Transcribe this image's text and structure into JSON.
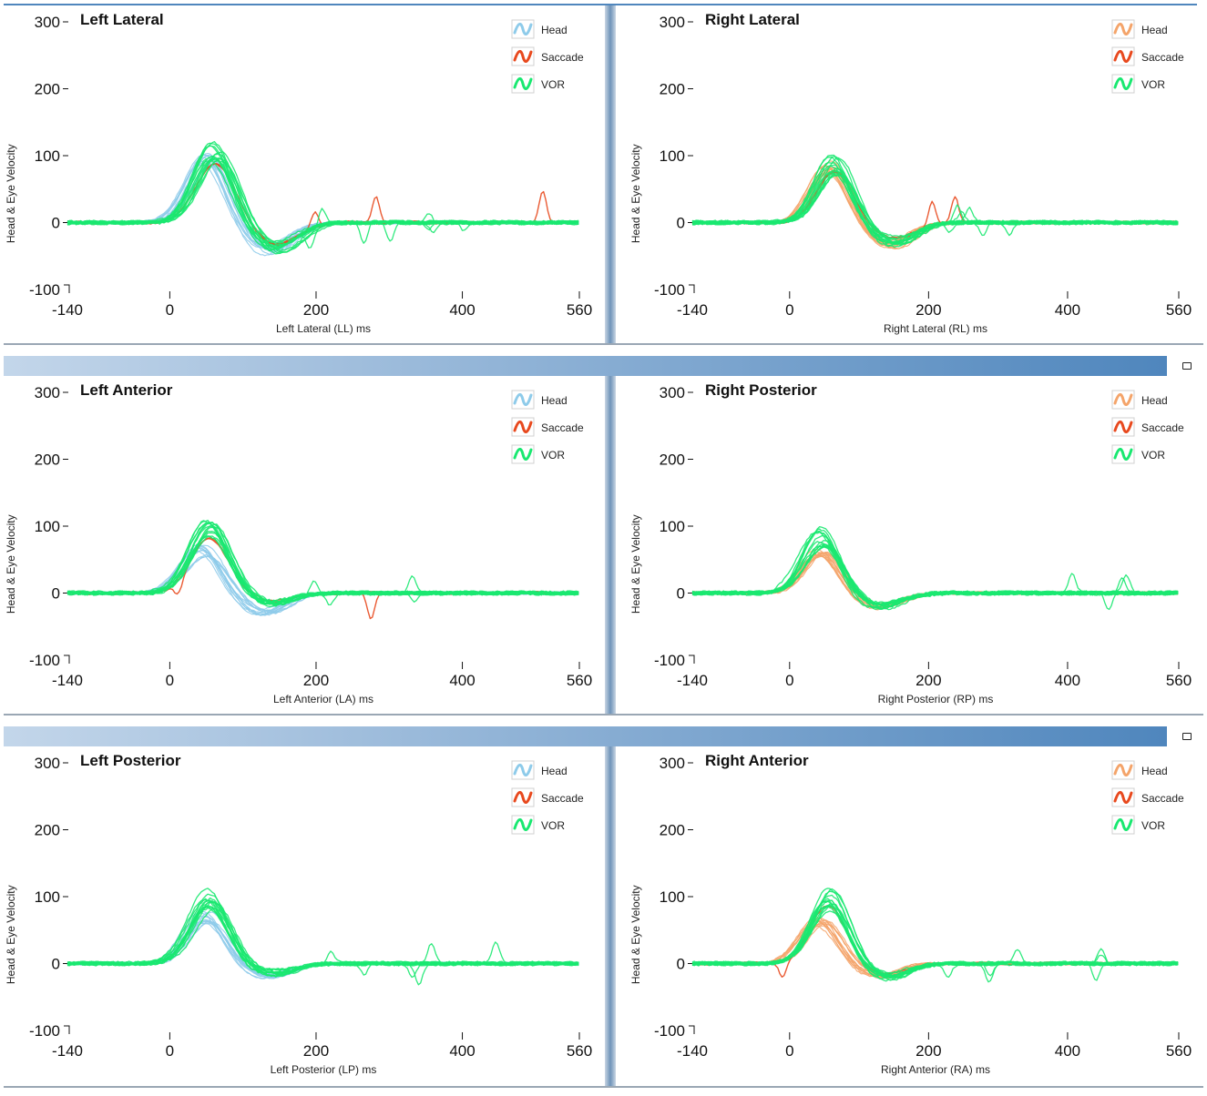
{
  "colors": {
    "head_left": "#8ecbea",
    "head_right": "#f4a46a",
    "saccade": "#e8491e",
    "vor": "#19e870",
    "divider_from": "#c3d6ea",
    "divider_to": "#4f86bd"
  },
  "icons": {
    "legend_swatch": "wave-icon",
    "restore_button": "restore-window-icon"
  },
  "chart_data": [
    {
      "type": "line",
      "title": "Left Lateral",
      "xlabel": "Left Lateral (LL) ms",
      "ylabel": "Head & Eye Velocity",
      "xlim": [
        -140,
        560
      ],
      "ylim": [
        -100,
        300
      ],
      "xticks": [
        "-140",
        "0",
        "200",
        "400",
        "560"
      ],
      "yticks": [
        "300",
        "200",
        "100",
        "0",
        "-100"
      ],
      "legend": [
        "Head",
        "Saccade",
        "VOR"
      ],
      "series": [
        {
          "name": "Head",
          "peak_time_ms": 50,
          "peak_value": 100,
          "trough_value": -45
        },
        {
          "name": "VOR",
          "peak_time_ms": 62,
          "peak_value": 105,
          "trough_value": -40
        },
        {
          "name": "Saccade",
          "spike_times_ms": [
            198,
            282,
            510
          ],
          "spike_values": [
            24,
            40,
            48
          ]
        }
      ]
    },
    {
      "type": "line",
      "title": "Right Lateral",
      "xlabel": "Right Lateral (RL) ms",
      "ylabel": "Head & Eye Velocity",
      "xlim": [
        -140,
        560
      ],
      "ylim": [
        -100,
        300
      ],
      "xticks": [
        "-140",
        "0",
        "200",
        "400",
        "560"
      ],
      "yticks": [
        "300",
        "200",
        "100",
        "0",
        "-100"
      ],
      "legend": [
        "Head",
        "Saccade",
        "VOR"
      ],
      "series": [
        {
          "name": "Head",
          "peak_time_ms": 60,
          "peak_value": 85,
          "trough_value": -35
        },
        {
          "name": "VOR",
          "peak_time_ms": 65,
          "peak_value": 90,
          "trough_value": -30
        },
        {
          "name": "Saccade",
          "spike_times_ms": [
            205,
            238
          ],
          "spike_values": [
            38,
            38
          ]
        }
      ]
    },
    {
      "type": "line",
      "title": "Left Anterior",
      "xlabel": "Left Anterior (LA) ms",
      "ylabel": "Head & Eye Velocity",
      "xlim": [
        -140,
        560
      ],
      "ylim": [
        -100,
        300
      ],
      "xticks": [
        "-140",
        "0",
        "200",
        "400",
        "560"
      ],
      "yticks": [
        "300",
        "200",
        "100",
        "0",
        "-100"
      ],
      "legend": [
        "Head",
        "Saccade",
        "VOR"
      ],
      "series": [
        {
          "name": "Head",
          "peak_time_ms": 45,
          "peak_value": 65,
          "trough_value": -30
        },
        {
          "name": "VOR",
          "peak_time_ms": 55,
          "peak_value": 95,
          "trough_value": -15
        },
        {
          "name": "Saccade",
          "spike_times_ms": [
            12,
            275
          ],
          "spike_values": [
            -20,
            -40
          ]
        }
      ]
    },
    {
      "type": "line",
      "title": "Right Posterior",
      "xlabel": "Right Posterior (RP) ms",
      "ylabel": "Head & Eye Velocity",
      "xlim": [
        -140,
        560
      ],
      "ylim": [
        -100,
        300
      ],
      "xticks": [
        "-140",
        "0",
        "200",
        "400",
        "560"
      ],
      "yticks": [
        "300",
        "200",
        "100",
        "0",
        "-100"
      ],
      "legend": [
        "Head",
        "Saccade",
        "VOR"
      ],
      "series": [
        {
          "name": "Head",
          "peak_time_ms": 45,
          "peak_value": 60,
          "trough_value": -20
        },
        {
          "name": "VOR",
          "peak_time_ms": 45,
          "peak_value": 85,
          "trough_value": -20
        },
        {
          "name": "Saccade",
          "spike_times_ms": [],
          "spike_values": []
        }
      ]
    },
    {
      "type": "line",
      "title": "Left Posterior",
      "xlabel": "Left Posterior (LP) ms",
      "ylabel": "Head & Eye Velocity",
      "xlim": [
        -140,
        560
      ],
      "ylim": [
        -100,
        300
      ],
      "xticks": [
        "-140",
        "0",
        "200",
        "400",
        "560"
      ],
      "yticks": [
        "300",
        "200",
        "100",
        "0",
        "-100"
      ],
      "legend": [
        "Head",
        "Saccade",
        "VOR"
      ],
      "series": [
        {
          "name": "Head",
          "peak_time_ms": 50,
          "peak_value": 70,
          "trough_value": -20
        },
        {
          "name": "VOR",
          "peak_time_ms": 55,
          "peak_value": 100,
          "trough_value": -15
        },
        {
          "name": "Saccade",
          "spike_times_ms": [],
          "spike_values": []
        }
      ]
    },
    {
      "type": "line",
      "title": "Right Anterior",
      "xlabel": "Right Anterior (RA) ms",
      "ylabel": "Head & Eye Velocity",
      "xlim": [
        -140,
        560
      ],
      "ylim": [
        -100,
        300
      ],
      "xticks": [
        "-140",
        "0",
        "200",
        "400",
        "560"
      ],
      "yticks": [
        "300",
        "200",
        "100",
        "0",
        "-100"
      ],
      "legend": [
        "Head",
        "Saccade",
        "VOR"
      ],
      "series": [
        {
          "name": "Head",
          "peak_time_ms": 45,
          "peak_value": 65,
          "trough_value": -20
        },
        {
          "name": "VOR",
          "peak_time_ms": 55,
          "peak_value": 100,
          "trough_value": -20
        },
        {
          "name": "Saccade",
          "spike_times_ms": [
            -10
          ],
          "spike_values": [
            -22
          ]
        }
      ]
    }
  ]
}
